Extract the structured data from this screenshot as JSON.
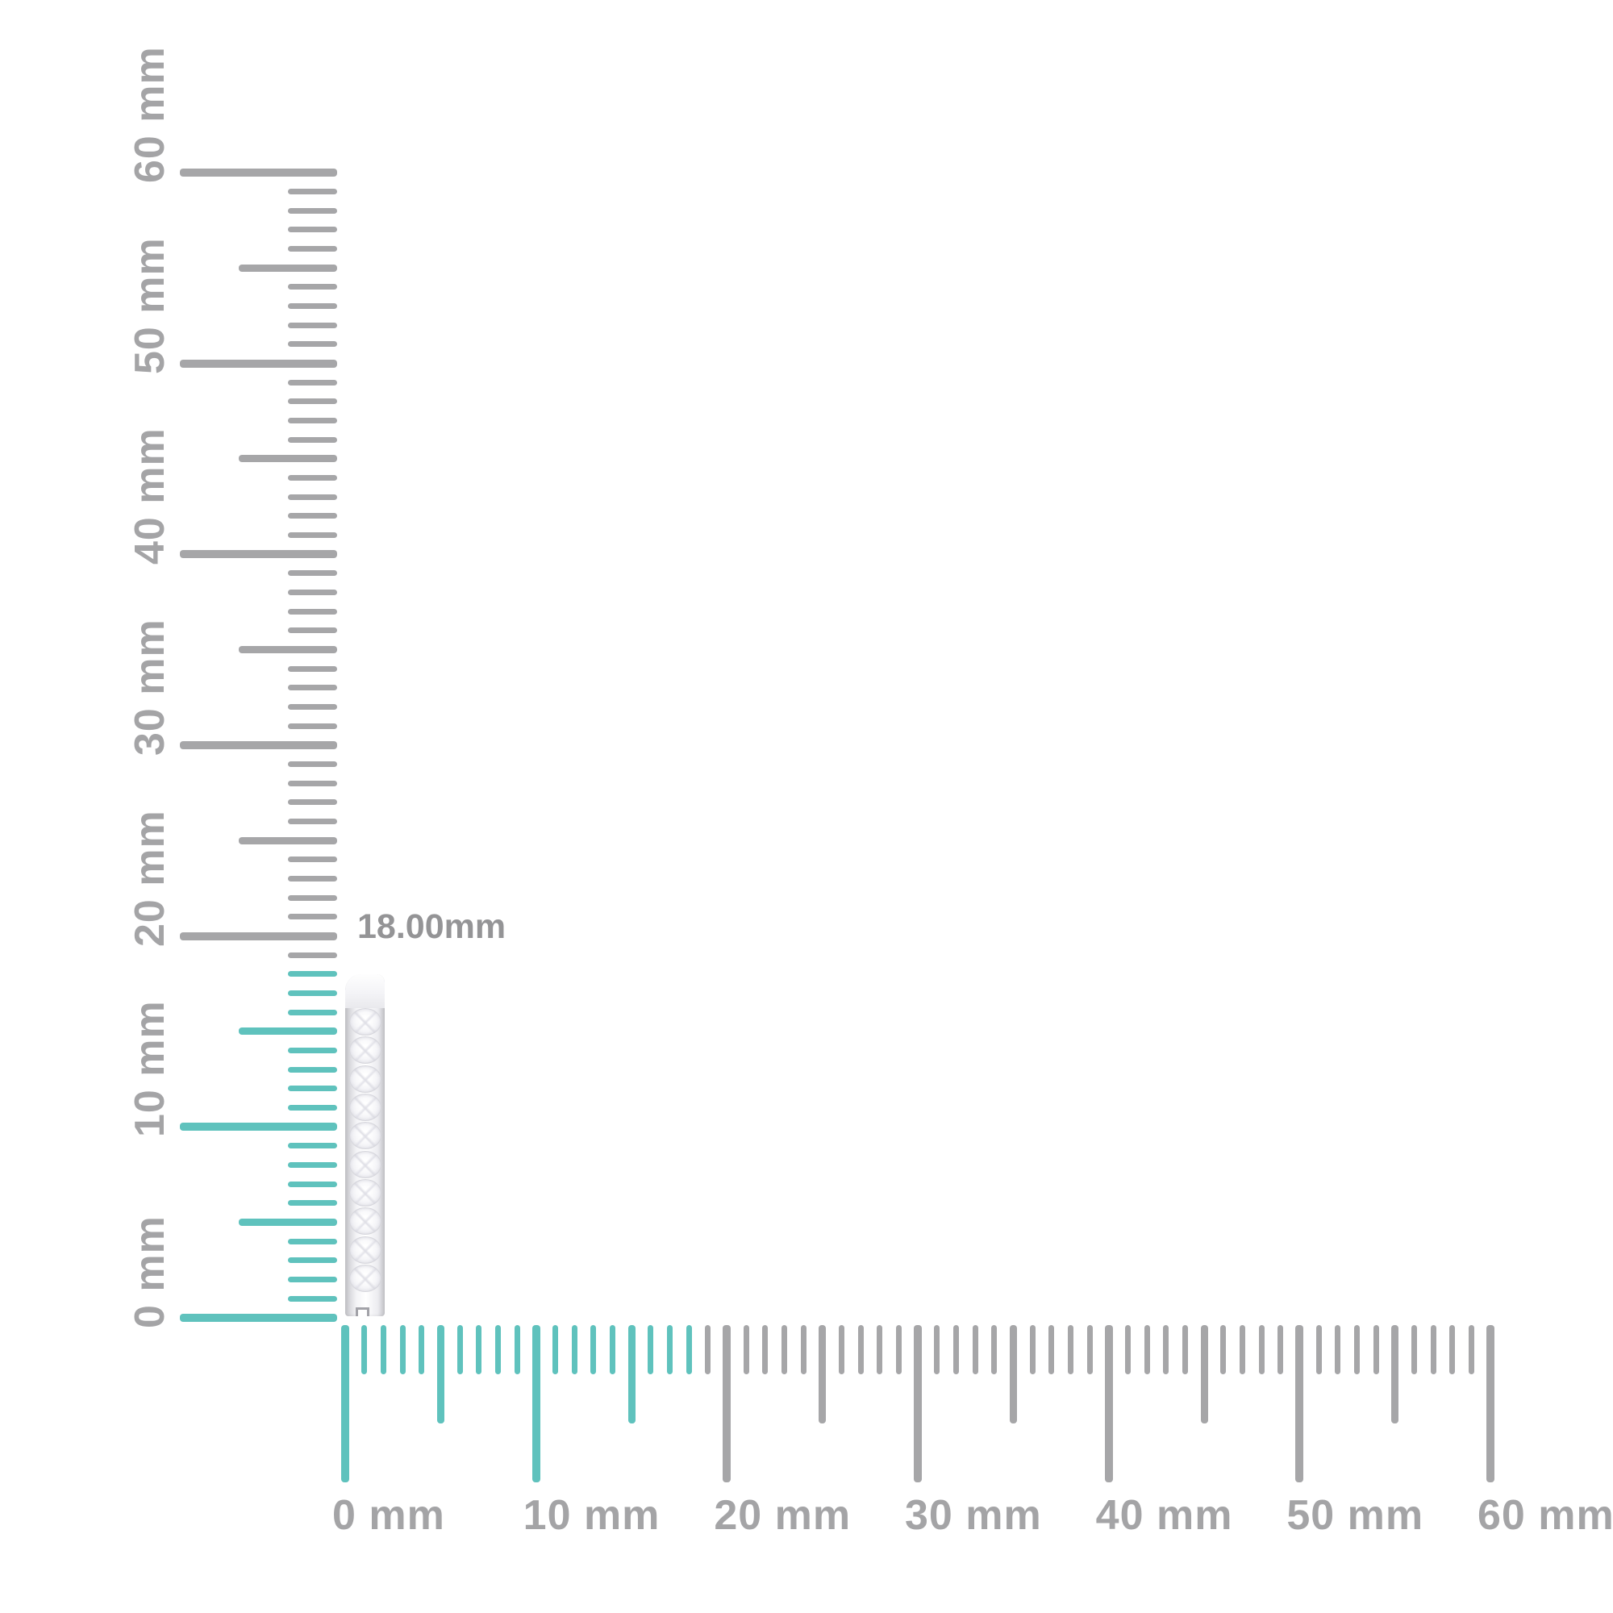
{
  "page": {
    "background": "#ffffff"
  },
  "measurement": {
    "label": "18.00mm",
    "value_mm": 18.0,
    "unit": "mm"
  },
  "colors": {
    "highlight_teal": "#5fc2bd",
    "tick_gray": "#a6a6a8",
    "ruler_label_gray": "#a4a4a6",
    "measurement_label_gray": "#949496"
  },
  "vertical_ruler": {
    "orientation": "vertical",
    "min_mm": 0,
    "max_mm": 60,
    "minor_step_mm": 1,
    "medium_step_mm": 5,
    "major_step_mm": 10,
    "highlight_through_mm": 18,
    "unit_labels": [
      "0 mm",
      "10 mm",
      "20 mm",
      "30 mm",
      "40 mm",
      "50 mm",
      "60 mm"
    ]
  },
  "horizontal_ruler": {
    "orientation": "horizontal",
    "min_mm": 0,
    "max_mm": 60,
    "minor_step_mm": 1,
    "medium_step_mm": 5,
    "major_step_mm": 10,
    "highlight_through_mm": 18,
    "unit_labels": [
      "0 mm",
      "10 mm",
      "20 mm",
      "30 mm",
      "40 mm",
      "50 mm",
      "60 mm"
    ]
  },
  "item": {
    "name": "diamond-hoop-earring-side-view",
    "stone_count": 10,
    "height_mm": 18
  }
}
